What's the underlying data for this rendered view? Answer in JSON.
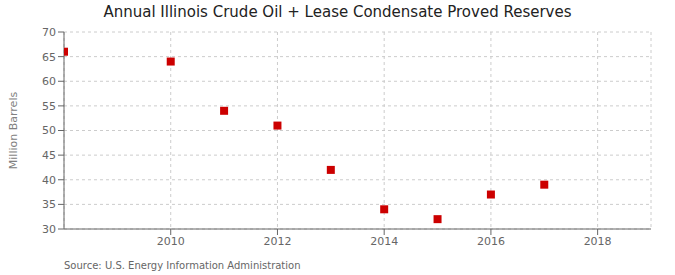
{
  "chart_data": {
    "type": "scatter",
    "title": "Annual Illinois Crude Oil + Lease Condensate Proved Reserves",
    "ylabel": "Million Barrels",
    "annotations": [
      "Source: U.S. Energy Information Administration"
    ],
    "x": [
      2008,
      2010,
      2011,
      2012,
      2013,
      2014,
      2015,
      2016,
      2017
    ],
    "values": [
      66,
      64,
      54,
      51,
      42,
      34,
      32,
      37,
      39
    ],
    "color": "#cc0000",
    "marker": "square",
    "xlim": [
      2008.0,
      2019.0
    ],
    "ylim": [
      30,
      70
    ],
    "xticks": [
      2010,
      2012,
      2014,
      2016,
      2018
    ],
    "yticks": [
      30,
      35,
      40,
      45,
      50,
      55,
      60,
      65,
      70
    ],
    "grid": true
  }
}
